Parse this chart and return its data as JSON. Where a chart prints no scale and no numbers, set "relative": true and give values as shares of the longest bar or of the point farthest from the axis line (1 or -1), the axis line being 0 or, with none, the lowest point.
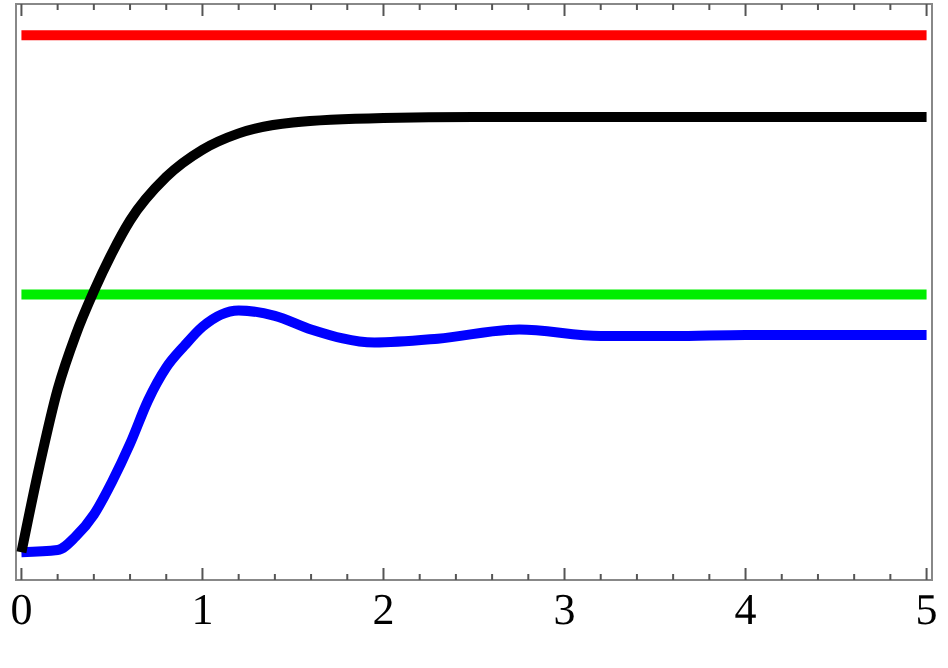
{
  "chart_data": {
    "type": "line",
    "relative": true,
    "xlim": [
      -0.03,
      5.03
    ],
    "xticks": [
      0,
      {
        "value": 0.2,
        "label": null
      },
      {
        "value": 0.4,
        "label": null
      },
      {
        "value": 0.6,
        "label": null
      },
      {
        "value": 0.8,
        "label": null
      },
      1,
      {
        "value": 1.2,
        "label": null
      },
      {
        "value": 1.4,
        "label": null
      },
      {
        "value": 1.6,
        "label": null
      },
      {
        "value": 1.8,
        "label": null
      },
      2,
      {
        "value": 2.2,
        "label": null
      },
      {
        "value": 2.4,
        "label": null
      },
      {
        "value": 2.6,
        "label": null
      },
      {
        "value": 2.8,
        "label": null
      },
      3,
      {
        "value": 3.2,
        "label": null
      },
      {
        "value": 3.4,
        "label": null
      },
      {
        "value": 3.6,
        "label": null
      },
      {
        "value": 3.8,
        "label": null
      },
      4,
      {
        "value": 4.2,
        "label": null
      },
      {
        "value": 4.4,
        "label": null
      },
      {
        "value": 4.6,
        "label": null
      },
      {
        "value": 4.8,
        "label": null
      },
      5
    ],
    "grid": false,
    "line_style": "solid",
    "series": [
      {
        "color": "#ff0000",
        "x": [
          0,
          5
        ],
        "values": [
          1,
          1
        ]
      },
      {
        "color": "#00ee00",
        "x": [
          0,
          5
        ],
        "values": [
          0.524,
          0.524
        ]
      },
      {
        "color": "#0000ff",
        "x": [
          0,
          0.2,
          0.3,
          0.4,
          0.5,
          0.6,
          0.7,
          0.8,
          0.9,
          1.0,
          1.2,
          1.4,
          1.6,
          1.95,
          2.3,
          2.75,
          3.2,
          3.6,
          4,
          5
        ],
        "values": [
          0.051,
          0.055,
          0.08,
          0.12,
          0.18,
          0.25,
          0.33,
          0.39,
          0.43,
          0.465,
          0.495,
          0.485,
          0.46,
          0.436,
          0.443,
          0.46,
          0.448,
          0.448,
          0.45,
          0.45
        ]
      },
      {
        "color": "#000000",
        "x": [
          0,
          0.1,
          0.2,
          0.3,
          0.4,
          0.5,
          0.6,
          0.8,
          1.0,
          1.2,
          1.5,
          2,
          2.5,
          3,
          4,
          5
        ],
        "values": [
          0.051,
          0.21,
          0.35,
          0.45,
          0.53,
          0.6,
          0.66,
          0.74,
          0.79,
          0.82,
          0.84,
          0.848,
          0.85,
          0.85,
          0.85,
          0.85
        ]
      }
    ]
  }
}
